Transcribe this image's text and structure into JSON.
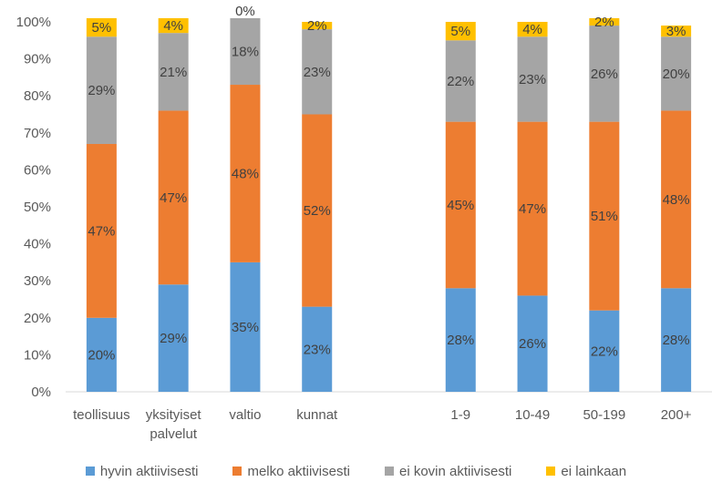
{
  "chart_data": {
    "type": "bar",
    "stacked": true,
    "categories": [
      "teollisuus",
      "yksityiset palvelut",
      "valtio",
      "kunnat",
      "",
      "1-9",
      "10-49",
      "50-199",
      "200+"
    ],
    "series": [
      {
        "name": "hyvin aktiivisesti",
        "color": "#5B9BD5",
        "values": [
          20,
          29,
          35,
          23,
          null,
          28,
          26,
          22,
          28
        ]
      },
      {
        "name": "melko aktiivisesti",
        "color": "#ED7D31",
        "values": [
          47,
          47,
          48,
          52,
          null,
          45,
          47,
          51,
          48
        ]
      },
      {
        "name": "ei kovin aktiivisesti",
        "color": "#A5A5A5",
        "values": [
          29,
          21,
          18,
          23,
          null,
          22,
          23,
          26,
          20
        ]
      },
      {
        "name": "ei lainkaan",
        "color": "#FFC000",
        "values": [
          5,
          4,
          0,
          2,
          null,
          5,
          4,
          2,
          3
        ]
      }
    ],
    "ylim": [
      0,
      100
    ],
    "yticks": [
      "0%",
      "10%",
      "20%",
      "30%",
      "40%",
      "50%",
      "60%",
      "70%",
      "80%",
      "90%",
      "100%"
    ],
    "legend": "bottom",
    "grid": false
  }
}
